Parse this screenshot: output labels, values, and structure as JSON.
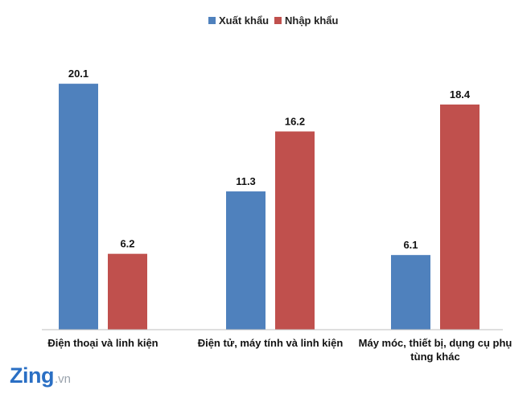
{
  "chart_data": {
    "type": "bar",
    "categories": [
      [
        "Điện thoại và linh kiện"
      ],
      [
        "Điện tử, máy tính và linh kiện"
      ],
      [
        "Máy móc, thiết bị, dụng cụ phụ",
        "tùng khác"
      ]
    ],
    "series": [
      {
        "name": "Xuất khẩu",
        "color": "#4f81bd",
        "values": [
          20.1,
          11.3,
          6.1
        ]
      },
      {
        "name": "Nhập khẩu",
        "color": "#c0504d",
        "values": [
          6.2,
          16.2,
          18.4
        ]
      }
    ],
    "ylim": [
      0,
      23
    ],
    "legend": "top-center",
    "grid": false,
    "data_labels": true
  },
  "logo": {
    "main": "Zing",
    "tld": ".vn",
    "color": "#2a6fc4"
  }
}
